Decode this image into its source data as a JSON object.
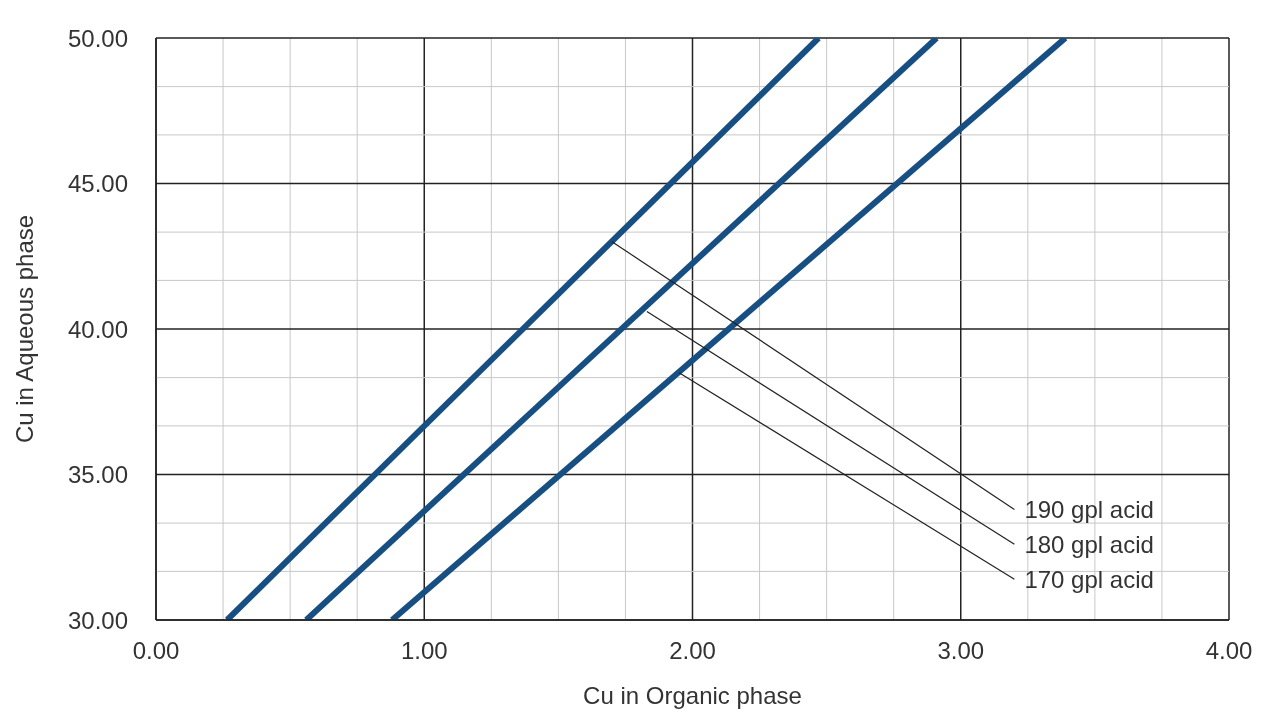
{
  "chart_data": {
    "type": "line",
    "xlabel": "Cu in Organic phase",
    "ylabel": "Cu in Aqueous phase",
    "xlim": [
      0,
      4
    ],
    "ylim": [
      30,
      50
    ],
    "xticks": [
      {
        "value": 0,
        "label": "0.00"
      },
      {
        "value": 0.25,
        "label": null
      },
      {
        "value": 0.5,
        "label": null
      },
      {
        "value": 0.75,
        "label": null
      },
      {
        "value": 1,
        "label": "1.00"
      },
      {
        "value": 1.25,
        "label": null
      },
      {
        "value": 1.5,
        "label": null
      },
      {
        "value": 1.75,
        "label": null
      },
      {
        "value": 2,
        "label": "2.00"
      },
      {
        "value": 2.25,
        "label": null
      },
      {
        "value": 2.5,
        "label": null
      },
      {
        "value": 2.75,
        "label": null
      },
      {
        "value": 3,
        "label": "3.00"
      },
      {
        "value": 3.25,
        "label": null
      },
      {
        "value": 3.5,
        "label": null
      },
      {
        "value": 3.75,
        "label": null
      },
      {
        "value": 4,
        "label": "4.00"
      }
    ],
    "yticks": [
      {
        "value": 30,
        "label": "30.00"
      },
      {
        "value": 31.67,
        "label": null
      },
      {
        "value": 33.33,
        "label": null
      },
      {
        "value": 35,
        "label": "35.00"
      },
      {
        "value": 36.67,
        "label": null
      },
      {
        "value": 38.33,
        "label": null
      },
      {
        "value": 40,
        "label": "40.00"
      },
      {
        "value": 41.67,
        "label": null
      },
      {
        "value": 43.33,
        "label": null
      },
      {
        "value": 45,
        "label": "45.00"
      },
      {
        "value": 46.67,
        "label": null
      },
      {
        "value": 48.33,
        "label": null
      },
      {
        "value": 50,
        "label": "50.00"
      }
    ],
    "grid": true,
    "marker": "none",
    "line_style": "solid",
    "series": [
      {
        "color": "#174f82",
        "x": [
          0.265,
          2.47
        ],
        "values": [
          30,
          50
        ]
      },
      {
        "color": "#174f82",
        "x": [
          0.56,
          2.91
        ],
        "values": [
          30,
          50
        ]
      },
      {
        "color": "#174f82",
        "x": [
          0.88,
          3.39
        ],
        "values": [
          30,
          50
        ]
      }
    ],
    "annotations": [
      {
        "text": "190 gpl acid",
        "x": 1.7,
        "y": 43
      },
      {
        "text": "180 gpl acid",
        "x": 1.83,
        "y": 40.6
      },
      {
        "text": "170 gpl acid",
        "x": 1.95,
        "y": 38.5
      }
    ]
  }
}
